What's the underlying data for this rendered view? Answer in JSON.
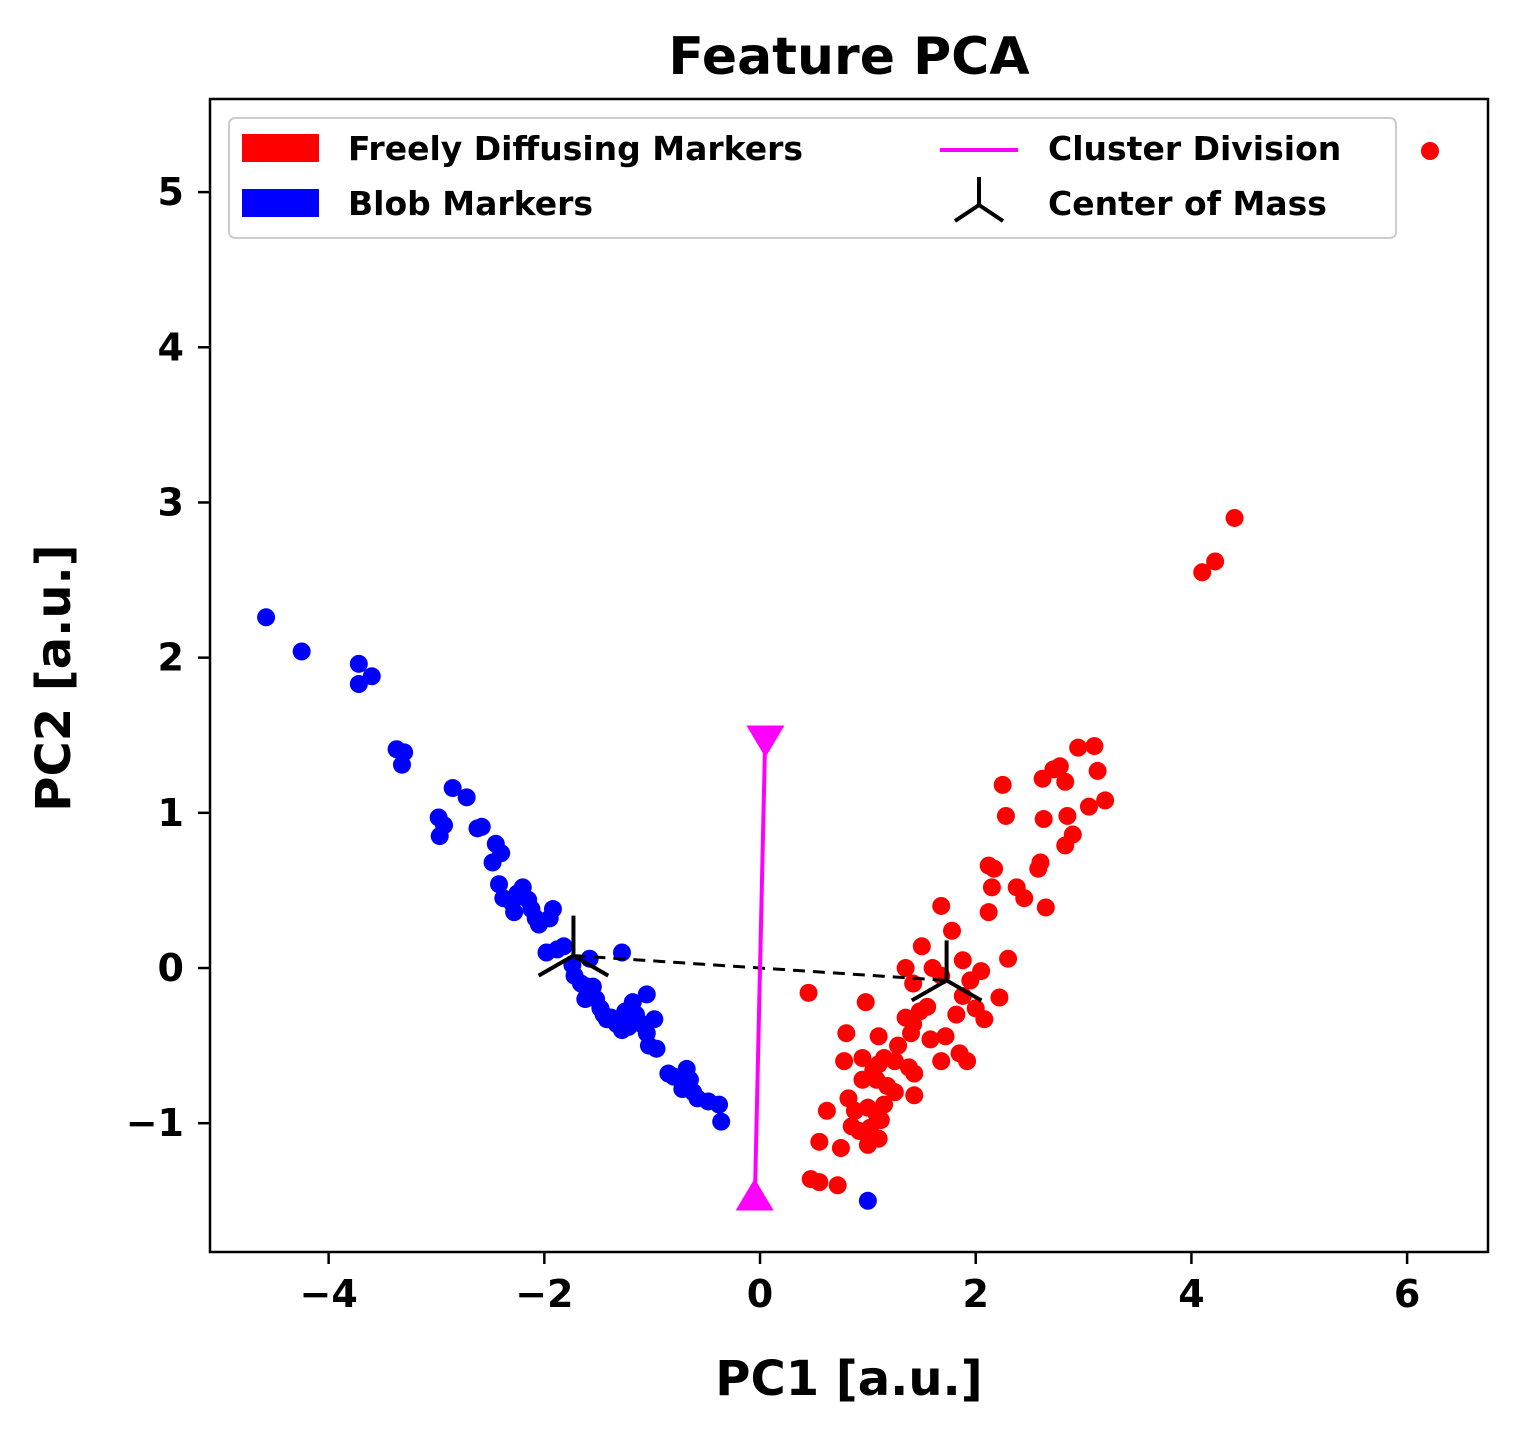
{
  "chart_data": {
    "type": "scatter",
    "title": "Feature PCA",
    "xlabel": "PC1 [a.u.]",
    "ylabel": "PC2 [a.u.]",
    "xlim": [
      -5.1,
      6.75
    ],
    "ylim": [
      -1.83,
      5.6
    ],
    "grid": false,
    "legend_placement": "top-left",
    "xticks": [
      {
        "value": -4,
        "label": "−4"
      },
      {
        "value": -2,
        "label": "−2"
      },
      {
        "value": 0,
        "label": "0"
      },
      {
        "value": 2,
        "label": "2"
      },
      {
        "value": 4,
        "label": "4"
      },
      {
        "value": 6,
        "label": "6"
      }
    ],
    "yticks": [
      {
        "value": -1,
        "label": "−1"
      },
      {
        "value": 0,
        "label": "0"
      },
      {
        "value": 1,
        "label": "1"
      },
      {
        "value": 2,
        "label": "2"
      },
      {
        "value": 3,
        "label": "3"
      },
      {
        "value": 4,
        "label": "4"
      },
      {
        "value": 5,
        "label": "5"
      }
    ],
    "colors": {
      "free": "#ff0000",
      "blob": "#0000ff",
      "division": "#ff00ff",
      "com": "#000000"
    },
    "legend": [
      {
        "label": "Freely Diffusing Markers",
        "kind": "patch",
        "color": "#ff0000"
      },
      {
        "label": "Blob Markers",
        "kind": "patch",
        "color": "#0000ff"
      },
      {
        "label": "Cluster Division",
        "kind": "line",
        "color": "#ff00ff"
      },
      {
        "label": "Center of Mass",
        "kind": "tri",
        "color": "#000000"
      },
      {
        "label": "",
        "kind": "dot",
        "color": "#ff0000"
      }
    ],
    "series": [
      {
        "name": "Blob Markers",
        "color": "#0000ff",
        "points": [
          [
            -4.58,
            2.26
          ],
          [
            -4.25,
            2.04
          ],
          [
            -3.72,
            1.96
          ],
          [
            -3.72,
            1.83
          ],
          [
            -3.6,
            1.88
          ],
          [
            -3.37,
            1.41
          ],
          [
            -3.3,
            1.39
          ],
          [
            -3.32,
            1.31
          ],
          [
            -2.98,
            0.97
          ],
          [
            -2.93,
            0.92
          ],
          [
            -2.97,
            0.85
          ],
          [
            -2.85,
            1.16
          ],
          [
            -2.72,
            1.1
          ],
          [
            -2.62,
            0.9
          ],
          [
            -2.58,
            0.91
          ],
          [
            -2.45,
            0.8
          ],
          [
            -2.4,
            0.74
          ],
          [
            -2.48,
            0.68
          ],
          [
            -2.42,
            0.54
          ],
          [
            -2.38,
            0.45
          ],
          [
            -2.3,
            0.42
          ],
          [
            -2.25,
            0.48
          ],
          [
            -2.2,
            0.52
          ],
          [
            -2.15,
            0.44
          ],
          [
            -2.12,
            0.38
          ],
          [
            -2.28,
            0.36
          ],
          [
            -2.08,
            0.32
          ],
          [
            -2.05,
            0.28
          ],
          [
            -1.95,
            0.32
          ],
          [
            -1.92,
            0.38
          ],
          [
            -1.98,
            0.1
          ],
          [
            -1.88,
            0.12
          ],
          [
            -1.82,
            0.14
          ],
          [
            -1.74,
            0.02
          ],
          [
            -1.72,
            -0.05
          ],
          [
            -1.66,
            -0.1
          ],
          [
            -1.6,
            -0.15
          ],
          [
            -1.55,
            -0.12
          ],
          [
            -1.52,
            -0.2
          ],
          [
            -1.48,
            -0.26
          ],
          [
            -1.62,
            -0.2
          ],
          [
            -1.58,
            0.06
          ],
          [
            -1.45,
            -0.3
          ],
          [
            -1.38,
            -0.32
          ],
          [
            -1.33,
            -0.36
          ],
          [
            -1.28,
            -0.4
          ],
          [
            -1.22,
            -0.38
          ],
          [
            -1.18,
            -0.22
          ],
          [
            -1.15,
            -0.3
          ],
          [
            -1.1,
            -0.36
          ],
          [
            -1.05,
            -0.42
          ],
          [
            -1.03,
            -0.5
          ],
          [
            -0.96,
            -0.52
          ],
          [
            -0.98,
            -0.33
          ],
          [
            -1.05,
            -0.17
          ],
          [
            -1.28,
            0.1
          ],
          [
            -0.85,
            -0.68
          ],
          [
            -0.8,
            -0.7
          ],
          [
            -0.72,
            -0.78
          ],
          [
            -0.65,
            -0.72
          ],
          [
            -0.62,
            -0.8
          ],
          [
            -0.58,
            -0.84
          ],
          [
            -0.48,
            -0.86
          ],
          [
            -0.38,
            -0.88
          ],
          [
            -0.36,
            -0.99
          ],
          [
            -1.6,
            -0.12
          ],
          [
            -1.42,
            -0.33
          ],
          [
            -1.25,
            -0.28
          ],
          [
            -0.68,
            -0.65
          ],
          [
            1.0,
            -1.5
          ]
        ]
      },
      {
        "name": "Freely Diffusing Markers",
        "color": "#ff0000",
        "points": [
          [
            4.1,
            2.55
          ],
          [
            4.22,
            2.62
          ],
          [
            4.4,
            2.9
          ],
          [
            2.95,
            1.42
          ],
          [
            3.1,
            1.43
          ],
          [
            3.13,
            1.27
          ],
          [
            3.2,
            1.08
          ],
          [
            3.05,
            1.04
          ],
          [
            2.85,
            0.98
          ],
          [
            2.9,
            0.86
          ],
          [
            2.83,
            0.79
          ],
          [
            2.72,
            1.28
          ],
          [
            2.78,
            1.3
          ],
          [
            2.83,
            1.2
          ],
          [
            2.62,
            1.22
          ],
          [
            2.63,
            0.96
          ],
          [
            2.25,
            1.18
          ],
          [
            2.28,
            0.98
          ],
          [
            2.58,
            0.64
          ],
          [
            2.6,
            0.68
          ],
          [
            2.38,
            0.52
          ],
          [
            2.45,
            0.45
          ],
          [
            2.65,
            0.39
          ],
          [
            2.12,
            0.66
          ],
          [
            2.17,
            0.64
          ],
          [
            2.15,
            0.52
          ],
          [
            2.12,
            0.36
          ],
          [
            2.3,
            0.06
          ],
          [
            1.68,
            0.4
          ],
          [
            1.78,
            0.24
          ],
          [
            1.5,
            0.14
          ],
          [
            1.6,
            0.0
          ],
          [
            1.35,
            0.0
          ],
          [
            1.42,
            -0.1
          ],
          [
            1.68,
            -0.05
          ],
          [
            1.88,
            0.05
          ],
          [
            2.05,
            -0.02
          ],
          [
            1.95,
            -0.08
          ],
          [
            1.88,
            -0.18
          ],
          [
            2.0,
            -0.26
          ],
          [
            2.22,
            -0.19
          ],
          [
            2.08,
            -0.33
          ],
          [
            1.82,
            -0.3
          ],
          [
            1.55,
            -0.25
          ],
          [
            1.48,
            -0.28
          ],
          [
            1.35,
            -0.32
          ],
          [
            1.42,
            -0.36
          ],
          [
            1.4,
            -0.42
          ],
          [
            1.28,
            -0.5
          ],
          [
            1.25,
            -0.6
          ],
          [
            1.38,
            -0.64
          ],
          [
            1.43,
            -0.68
          ],
          [
            1.58,
            -0.46
          ],
          [
            1.68,
            -0.6
          ],
          [
            1.72,
            -0.44
          ],
          [
            1.85,
            -0.55
          ],
          [
            1.92,
            -0.6
          ],
          [
            1.1,
            -0.44
          ],
          [
            1.15,
            -0.58
          ],
          [
            1.1,
            -0.62
          ],
          [
            1.05,
            -0.66
          ],
          [
            0.95,
            -0.58
          ],
          [
            0.8,
            -0.42
          ],
          [
            0.78,
            -0.6
          ],
          [
            0.98,
            -0.22
          ],
          [
            0.45,
            -0.16
          ],
          [
            1.08,
            -0.72
          ],
          [
            1.18,
            -0.76
          ],
          [
            1.25,
            -0.8
          ],
          [
            1.43,
            -0.82
          ],
          [
            0.82,
            -0.84
          ],
          [
            0.88,
            -0.92
          ],
          [
            1.0,
            -0.9
          ],
          [
            1.08,
            -0.94
          ],
          [
            1.12,
            -0.98
          ],
          [
            0.62,
            -0.92
          ],
          [
            0.85,
            -1.02
          ],
          [
            0.92,
            -1.05
          ],
          [
            1.02,
            -1.03
          ],
          [
            1.1,
            -1.1
          ],
          [
            0.55,
            -1.12
          ],
          [
            0.75,
            -1.16
          ],
          [
            1.0,
            -1.14
          ],
          [
            0.47,
            -1.36
          ],
          [
            0.55,
            -1.38
          ],
          [
            0.72,
            -1.4
          ],
          [
            1.15,
            -0.88
          ],
          [
            0.95,
            -0.72
          ]
        ]
      }
    ],
    "cluster_division": {
      "x": [
        -0.05,
        0.05
      ],
      "y": [
        -1.55,
        1.55
      ]
    },
    "center_of_mass": [
      {
        "x": -1.73,
        "y": 0.08
      },
      {
        "x": 1.73,
        "y": -0.08
      }
    ],
    "extra_point": {
      "label": "",
      "x": 6.2,
      "y": 5.3
    }
  }
}
